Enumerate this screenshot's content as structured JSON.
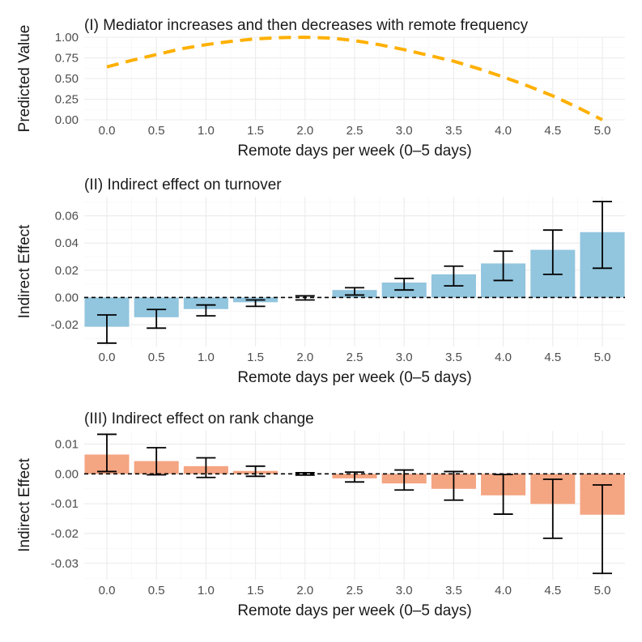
{
  "chart_data": [
    {
      "type": "line",
      "title": "(I) Mediator increases and then decreases with remote frequency",
      "xlabel": "Remote days per week (0–5 days)",
      "ylabel": "Predicted Value",
      "xlim": [
        0,
        5
      ],
      "ylim": [
        0,
        1
      ],
      "x_ticks": [
        "0.0",
        "0.5",
        "1.0",
        "1.5",
        "2.0",
        "2.5",
        "3.0",
        "3.5",
        "4.0",
        "4.5",
        "5.0"
      ],
      "y_ticks": [
        "0.00",
        "0.25",
        "0.50",
        "0.75",
        "1.00"
      ],
      "x": [
        0.0,
        0.25,
        0.5,
        0.75,
        1.0,
        1.25,
        1.5,
        1.75,
        2.0,
        2.25,
        2.5,
        2.75,
        3.0,
        3.25,
        3.5,
        3.75,
        4.0,
        4.25,
        4.5,
        4.75,
        5.0
      ],
      "y": [
        0.64,
        0.72,
        0.79,
        0.86,
        0.91,
        0.95,
        0.98,
        0.995,
        1.0,
        0.99,
        0.96,
        0.91,
        0.85,
        0.78,
        0.71,
        0.62,
        0.52,
        0.41,
        0.29,
        0.15,
        0.0
      ],
      "line_style": "dashed",
      "color": "#FFB000"
    },
    {
      "type": "bar",
      "title": "(II) Indirect effect on turnover",
      "xlabel": "Remote days per week (0–5 days)",
      "ylabel": "Indirect Effect",
      "ylim": [
        -0.036,
        0.074
      ],
      "x_ticks": [
        "0.0",
        "0.5",
        "1.0",
        "1.5",
        "2.0",
        "2.5",
        "3.0",
        "3.5",
        "4.0",
        "4.5",
        "5.0"
      ],
      "y_ticks": [
        "-0.02",
        "0.00",
        "0.02",
        "0.04",
        "0.06"
      ],
      "categories": [
        0.0,
        0.5,
        1.0,
        1.5,
        2.0,
        2.5,
        3.0,
        3.5,
        4.0,
        4.5,
        5.0
      ],
      "values": [
        -0.0215,
        -0.0145,
        -0.0085,
        -0.0035,
        0.0,
        0.0055,
        0.011,
        0.017,
        0.025,
        0.035,
        0.048
      ],
      "ci_low": [
        -0.0335,
        -0.0225,
        -0.0135,
        -0.0065,
        -0.0018,
        0.0018,
        0.0055,
        0.0085,
        0.0125,
        0.017,
        0.0215
      ],
      "ci_high": [
        -0.0128,
        -0.0088,
        -0.0055,
        -0.0018,
        0.0012,
        0.0072,
        0.014,
        0.023,
        0.034,
        0.0495,
        0.0705
      ],
      "reference_line": 0,
      "color": "#92C5DE"
    },
    {
      "type": "bar",
      "title": "(III) Indirect effect on rank change",
      "xlabel": "Remote days per week (0–5 days)",
      "ylabel": "Indirect Effect",
      "ylim": [
        -0.0355,
        0.0145
      ],
      "x_ticks": [
        "0.0",
        "0.5",
        "1.0",
        "1.5",
        "2.0",
        "2.5",
        "3.0",
        "3.5",
        "4.0",
        "4.5",
        "5.0"
      ],
      "y_ticks": [
        "-0.03",
        "-0.02",
        "-0.01",
        "0.00",
        "0.01"
      ],
      "categories": [
        0.0,
        0.5,
        1.0,
        1.5,
        2.0,
        2.5,
        3.0,
        3.5,
        4.0,
        4.5,
        5.0
      ],
      "values": [
        0.0065,
        0.0043,
        0.0026,
        0.001,
        0.0,
        -0.0015,
        -0.0032,
        -0.005,
        -0.0072,
        -0.0101,
        -0.0137
      ],
      "ci_low": [
        0.0008,
        -0.0003,
        -0.0012,
        -0.0008,
        -0.0004,
        -0.0027,
        -0.0054,
        -0.0088,
        -0.0135,
        -0.0216,
        -0.0334
      ],
      "ci_high": [
        0.0133,
        0.0088,
        0.0054,
        0.0026,
        0.0004,
        0.0006,
        0.0013,
        0.0008,
        -0.0002,
        -0.0018,
        -0.0037
      ],
      "reference_line": 0,
      "color": "#F4A582"
    }
  ]
}
